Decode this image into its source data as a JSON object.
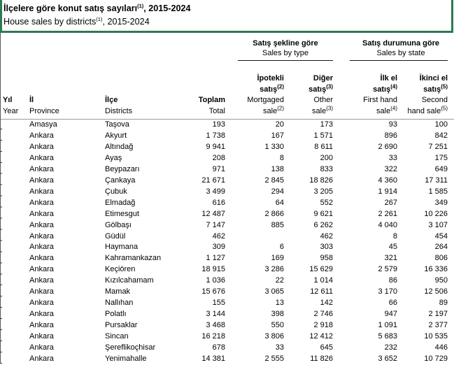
{
  "title": {
    "tr_pre": "İlçelere göre konut satış sayıları",
    "tr_sup": "(1)",
    "tr_post": ", 2015-2024",
    "en_pre": "House sales by districts",
    "en_sup": "(1)",
    "en_post": ", 2015-2024"
  },
  "colors": {
    "accent_green": "#2d7a52",
    "header_rule_gray": "#9a9a9a"
  },
  "header": {
    "groups": [
      {
        "tr": "Satış şekline göre",
        "en": "Sales by type"
      },
      {
        "tr": "Satış durumuna göre",
        "en": "Sales by state"
      }
    ],
    "cols": {
      "year": {
        "tr": "Yıl",
        "en": "Year"
      },
      "province": {
        "tr": "İl",
        "en": "Province"
      },
      "district": {
        "tr": "İlçe",
        "en": "Districts"
      },
      "total": {
        "tr": "Toplam",
        "en": "Total"
      },
      "mortgaged": {
        "tr1": "İpotekli",
        "tr2": "satış",
        "tr_sup": "(2)",
        "en1": "Mortgaged",
        "en2": "sale",
        "en_sup": "(2)"
      },
      "other": {
        "tr1": "Diğer",
        "tr2": "satış",
        "tr_sup": "(3)",
        "en1": "Other",
        "en2": "sale",
        "en_sup": "(3)"
      },
      "first_hand": {
        "tr1": "İlk el",
        "tr2": "satış",
        "tr_sup": "(4)",
        "en1": "First hand",
        "en2": "sale",
        "en_sup": "(4)"
      },
      "second_hand": {
        "tr1": "İkinci el",
        "tr2": "satış",
        "tr_sup": "(5)",
        "en1": "Second",
        "en2": "hand sale",
        "en_sup": "(5)"
      }
    }
  },
  "rows": [
    {
      "year": "",
      "province": "Amasya",
      "district": "Taşova",
      "total": "193",
      "mortgaged": "20",
      "other": "173",
      "first": "93",
      "second": "100"
    },
    {
      "year": "",
      "province": "Ankara",
      "district": "Akyurt",
      "total": "1 738",
      "mortgaged": "167",
      "other": "1 571",
      "first": "896",
      "second": "842"
    },
    {
      "year": "",
      "province": "Ankara",
      "district": "Altındağ",
      "total": "9 941",
      "mortgaged": "1 330",
      "other": "8 611",
      "first": "2 690",
      "second": "7 251"
    },
    {
      "year": "",
      "province": "Ankara",
      "district": "Ayaş",
      "total": "208",
      "mortgaged": "8",
      "other": "200",
      "first": "33",
      "second": "175"
    },
    {
      "year": "",
      "province": "Ankara",
      "district": "Beypazarı",
      "total": "971",
      "mortgaged": "138",
      "other": "833",
      "first": "322",
      "second": "649"
    },
    {
      "year": "",
      "province": "Ankara",
      "district": "Çankaya",
      "total": "21 671",
      "mortgaged": "2 845",
      "other": "18 826",
      "first": "4 360",
      "second": "17 311"
    },
    {
      "year": "",
      "province": "Ankara",
      "district": "Çubuk",
      "total": "3 499",
      "mortgaged": "294",
      "other": "3 205",
      "first": "1 914",
      "second": "1 585"
    },
    {
      "year": "",
      "province": "Ankara",
      "district": "Elmadağ",
      "total": "616",
      "mortgaged": "64",
      "other": "552",
      "first": "267",
      "second": "349"
    },
    {
      "year": "",
      "province": "Ankara",
      "district": "Etimesgut",
      "total": "12 487",
      "mortgaged": "2 866",
      "other": "9 621",
      "first": "2 261",
      "second": "10 226"
    },
    {
      "year": "",
      "province": "Ankara",
      "district": "Gölbaşı",
      "total": "7 147",
      "mortgaged": "885",
      "other": "6 262",
      "first": "4 040",
      "second": "3 107"
    },
    {
      "year": "",
      "province": "Ankara",
      "district": "Güdül",
      "total": "462",
      "mortgaged": "",
      "other": "462",
      "first": "8",
      "second": "454"
    },
    {
      "year": "",
      "province": "Ankara",
      "district": "Haymana",
      "total": "309",
      "mortgaged": "6",
      "other": "303",
      "first": "45",
      "second": "264"
    },
    {
      "year": "",
      "province": "Ankara",
      "district": "Kahramankazan",
      "total": "1 127",
      "mortgaged": "169",
      "other": "958",
      "first": "321",
      "second": "806"
    },
    {
      "year": "",
      "province": "Ankara",
      "district": "Keçiören",
      "total": "18 915",
      "mortgaged": "3 286",
      "other": "15 629",
      "first": "2 579",
      "second": "16 336"
    },
    {
      "year": "",
      "province": "Ankara",
      "district": "Kızılcahamam",
      "total": "1 036",
      "mortgaged": "22",
      "other": "1 014",
      "first": "86",
      "second": "950"
    },
    {
      "year": "",
      "province": "Ankara",
      "district": "Mamak",
      "total": "15 676",
      "mortgaged": "3 065",
      "other": "12 611",
      "first": "3 170",
      "second": "12 506"
    },
    {
      "year": "",
      "province": "Ankara",
      "district": "Nallıhan",
      "total": "155",
      "mortgaged": "13",
      "other": "142",
      "first": "66",
      "second": "89"
    },
    {
      "year": "",
      "province": "Ankara",
      "district": "Polatlı",
      "total": "3 144",
      "mortgaged": "398",
      "other": "2 746",
      "first": "947",
      "second": "2 197"
    },
    {
      "year": "",
      "province": "Ankara",
      "district": "Pursaklar",
      "total": "3 468",
      "mortgaged": "550",
      "other": "2 918",
      "first": "1 091",
      "second": "2 377"
    },
    {
      "year": "",
      "province": "Ankara",
      "district": "Sincan",
      "total": "16 218",
      "mortgaged": "3 806",
      "other": "12 412",
      "first": "5 683",
      "second": "10 535"
    },
    {
      "year": "",
      "province": "Ankara",
      "district": "Şereflikoçhisar",
      "total": "678",
      "mortgaged": "33",
      "other": "645",
      "first": "232",
      "second": "446"
    },
    {
      "year": "",
      "province": "Ankara",
      "district": "Yenimahalle",
      "total": "14 381",
      "mortgaged": "2 555",
      "other": "11 826",
      "first": "3 652",
      "second": "10 729"
    }
  ]
}
